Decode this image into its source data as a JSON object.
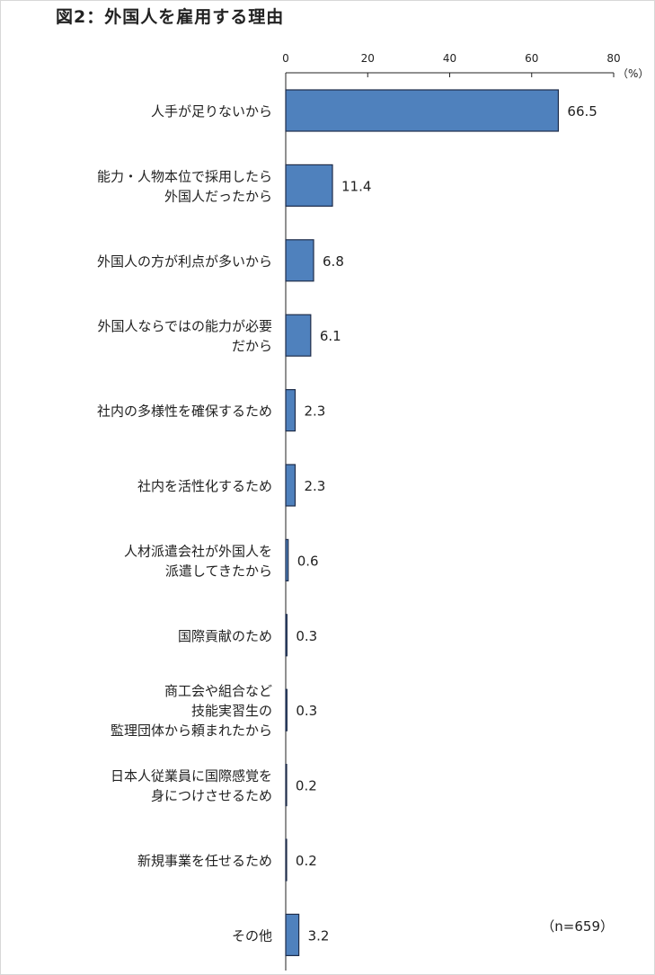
{
  "chart_data": {
    "type": "bar",
    "orientation": "horizontal",
    "title": "図2：外国人を雇用する理由",
    "unit_label": "（%）",
    "note": "（n=659）",
    "xlim": [
      0,
      80
    ],
    "ticks": [
      0,
      20,
      40,
      60,
      80
    ],
    "grid": false,
    "bar_color": "#4f81bd",
    "bar_edge_color": "#1f2d4a",
    "categories": [
      [
        "人手が足りないから"
      ],
      [
        "能力・人物本位で採用したら",
        "外国人だったから"
      ],
      [
        "外国人の方が利点が多いから"
      ],
      [
        "外国人ならではの能力が必要",
        "だから"
      ],
      [
        "社内の多様性を確保するため"
      ],
      [
        "社内を活性化するため"
      ],
      [
        "人材派遣会社が外国人を",
        "派遣してきたから"
      ],
      [
        "国際貢献のため"
      ],
      [
        "商工会や組合など",
        "技能実習生の",
        "監理団体から頼まれたから"
      ],
      [
        "日本人従業員に国際感覚を",
        "身につけさせるため"
      ],
      [
        "新規事業を任せるため"
      ],
      [
        "その他"
      ]
    ],
    "values": [
      66.5,
      11.4,
      6.8,
      6.1,
      2.3,
      2.3,
      0.6,
      0.3,
      0.3,
      0.2,
      0.2,
      3.2
    ],
    "value_labels": [
      "66.5",
      "11.4",
      "6.8",
      "6.1",
      "2.3",
      "2.3",
      "0.6",
      "0.3",
      "0.3",
      "0.2",
      "0.2",
      "3.2"
    ]
  }
}
